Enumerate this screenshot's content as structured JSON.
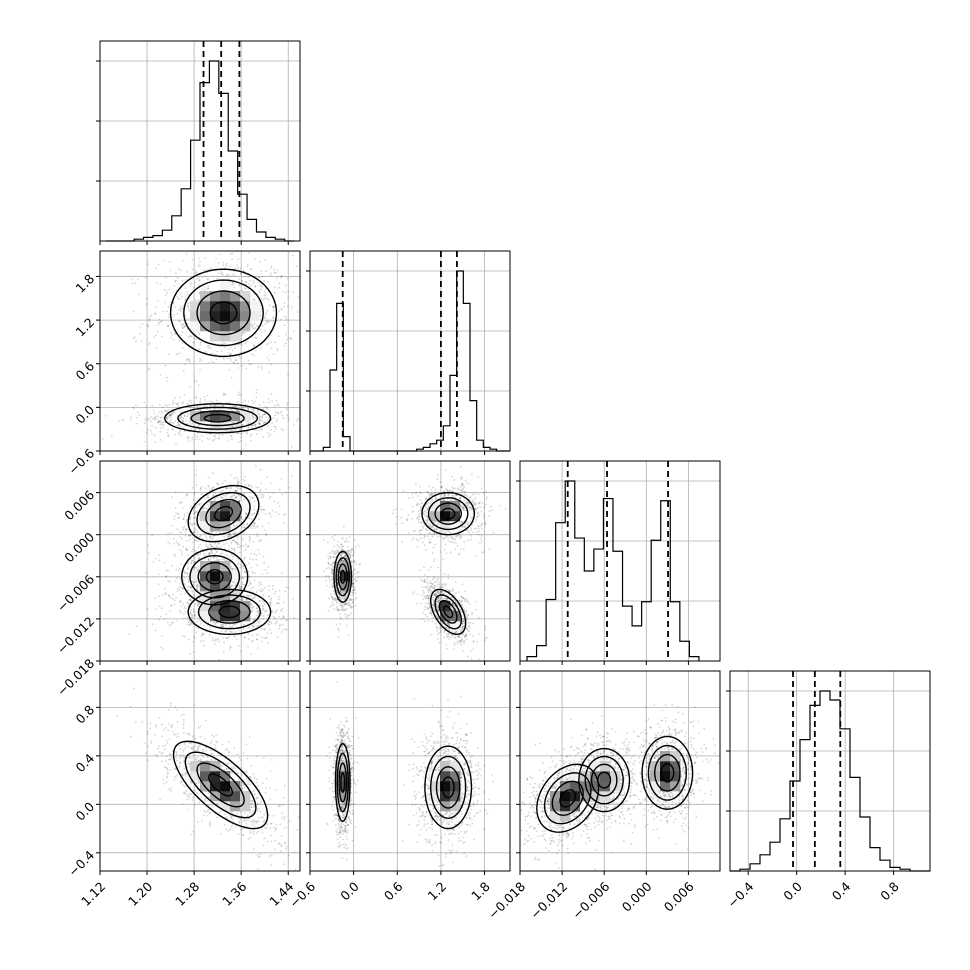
{
  "chart_data": {
    "type": "corner",
    "title": "",
    "grid": true,
    "parameters": [
      {
        "label": "",
        "range": [
          1.12,
          1.46
        ],
        "ticks": [
          1.12,
          1.2,
          1.28,
          1.36,
          1.44
        ],
        "tick_labels": [
          "1.12",
          "1.20",
          "1.28",
          "1.36",
          "1.44"
        ],
        "quantiles": [
          1.296,
          1.326,
          1.357
        ],
        "histogram": {
          "range": [
            1.13,
            1.45
          ],
          "counts": [
            0,
            0,
            0,
            1,
            2,
            3,
            6,
            14,
            29,
            56,
            88,
            100,
            82,
            50,
            26,
            12,
            5,
            2,
            1,
            0
          ]
        }
      },
      {
        "label": "",
        "range": [
          -0.6,
          2.15
        ],
        "ticks": [
          -0.6,
          0.0,
          0.6,
          1.2,
          1.8
        ],
        "tick_labels": [
          "−0.6",
          "0.0",
          "0.6",
          "1.2",
          "1.8"
        ],
        "quantiles": [
          -0.15,
          1.2,
          1.42
        ],
        "histogram": {
          "range": [
            -0.6,
            2.15
          ],
          "counts": [
            0,
            0,
            2,
            45,
            82,
            8,
            0,
            0,
            0,
            0,
            0,
            0,
            0,
            0,
            0,
            0,
            1,
            2,
            4,
            6,
            14,
            42,
            100,
            82,
            28,
            6,
            2,
            1,
            0,
            0
          ]
        }
      },
      {
        "label": "",
        "range": [
          -0.018,
          0.0105
        ],
        "ticks": [
          -0.018,
          -0.012,
          -0.006,
          0.0,
          0.006
        ],
        "tick_labels": [
          "−0.018",
          "−0.012",
          "−0.006",
          "0.000",
          "0.006"
        ],
        "quantiles": [
          -0.0112,
          -0.0056,
          0.0031
        ],
        "histogram": {
          "range": [
            -0.017,
            0.0075
          ],
          "counts": [
            2,
            7,
            28,
            63,
            82,
            56,
            41,
            51,
            74,
            50,
            25,
            16,
            27,
            55,
            73,
            27,
            9,
            2
          ]
        }
      },
      {
        "label": "",
        "range": [
          -0.55,
          1.1
        ],
        "ticks": [
          -0.4,
          0.0,
          0.4,
          0.8
        ],
        "tick_labels": [
          "−0.4",
          "0.0",
          "0.4",
          "0.8"
        ],
        "quantiles": [
          -0.03,
          0.15,
          0.36
        ],
        "histogram": {
          "range": [
            -0.55,
            1.1
          ],
          "counts": [
            0,
            1,
            4,
            9,
            16,
            29,
            50,
            73,
            92,
            100,
            95,
            79,
            52,
            30,
            13,
            6,
            2,
            1,
            0,
            0
          ]
        }
      }
    ],
    "y_tick_labels_rows": [
      {
        "row": 1,
        "ticks": [
          -0.6,
          0.0,
          0.6,
          1.2,
          1.8
        ],
        "labels": [
          "−0.6",
          "0.0",
          "0.6",
          "1.2",
          "1.8"
        ]
      },
      {
        "row": 2,
        "ticks": [
          -0.018,
          -0.012,
          -0.006,
          0.0,
          0.006
        ],
        "labels": [
          "−0.018",
          "−0.012",
          "−0.006",
          "0.000",
          "0.006"
        ]
      },
      {
        "row": 3,
        "ticks": [
          -0.4,
          0.0,
          0.4,
          0.8
        ],
        "labels": [
          "−0.4",
          "0.0",
          "0.4",
          "0.8"
        ]
      }
    ],
    "clusters": [
      {
        "pair": [
          0,
          1
        ],
        "modes": [
          {
            "cx": 1.33,
            "cy": 1.3,
            "sx": 0.045,
            "sy": 0.3,
            "rho": 0.0,
            "w": 1.0
          },
          {
            "cx": 1.32,
            "cy": -0.15,
            "sx": 0.045,
            "sy": 0.1,
            "rho": 0.0,
            "w": 0.9
          }
        ]
      },
      {
        "pair": [
          0,
          2
        ],
        "modes": [
          {
            "cx": 1.33,
            "cy": 0.003,
            "sx": 0.03,
            "sy": 0.002,
            "rho": 0.3,
            "w": 0.8
          },
          {
            "cx": 1.315,
            "cy": -0.006,
            "sx": 0.028,
            "sy": 0.002,
            "rho": 0.0,
            "w": 0.8
          },
          {
            "cx": 1.34,
            "cy": -0.011,
            "sx": 0.035,
            "sy": 0.0016,
            "rho": 0.0,
            "w": 0.8
          }
        ]
      },
      {
        "pair": [
          1,
          2
        ],
        "modes": [
          {
            "cx": 1.3,
            "cy": 0.003,
            "sx": 0.18,
            "sy": 0.0015,
            "rho": 0.0,
            "w": 1.0
          },
          {
            "cx": -0.15,
            "cy": -0.006,
            "sx": 0.06,
            "sy": 0.0018,
            "rho": 0.0,
            "w": 1.0
          },
          {
            "cx": 1.3,
            "cy": -0.011,
            "sx": 0.12,
            "sy": 0.0016,
            "rho": -0.5,
            "w": 1.0
          }
        ]
      },
      {
        "pair": [
          0,
          3
        ],
        "modes": [
          {
            "cx": 1.325,
            "cy": 0.16,
            "sx": 0.04,
            "sy": 0.18,
            "rho": -0.7,
            "w": 1.0
          }
        ]
      },
      {
        "pair": [
          1,
          3
        ],
        "modes": [
          {
            "cx": -0.15,
            "cy": 0.18,
            "sx": 0.05,
            "sy": 0.16,
            "rho": 0.0,
            "w": 1.0
          },
          {
            "cx": 1.3,
            "cy": 0.14,
            "sx": 0.16,
            "sy": 0.17,
            "rho": 0.0,
            "w": 1.0
          }
        ]
      },
      {
        "pair": [
          2,
          3
        ],
        "modes": [
          {
            "cx": -0.0112,
            "cy": 0.05,
            "sx": 0.0022,
            "sy": 0.14,
            "rho": 0.3,
            "w": 0.9
          },
          {
            "cx": -0.006,
            "cy": 0.2,
            "sx": 0.0018,
            "sy": 0.13,
            "rho": 0.0,
            "w": 0.7
          },
          {
            "cx": 0.003,
            "cy": 0.26,
            "sx": 0.0018,
            "sy": 0.15,
            "rho": 0.0,
            "w": 0.9
          }
        ]
      }
    ]
  }
}
